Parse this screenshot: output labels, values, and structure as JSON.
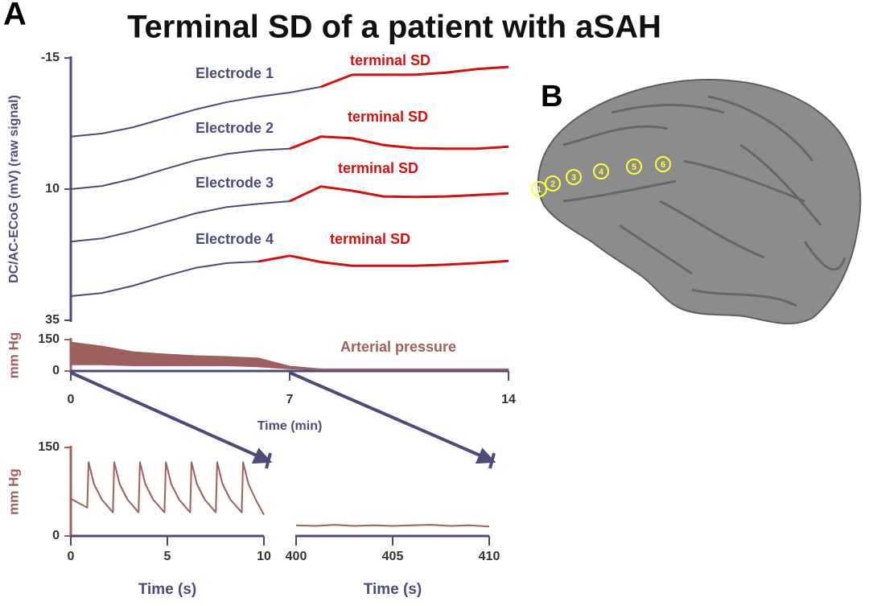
{
  "title": "Terminal SD of a patient with aSAH",
  "panel_labels": [
    "A",
    "B"
  ],
  "brain_electrodes": [
    "1",
    "2",
    "3",
    "4",
    "5",
    "6"
  ],
  "chart_data": [
    {
      "type": "line",
      "ylabel": "DC/AC-ECoG (mV) (raw signal)",
      "xlim": [
        0,
        14
      ],
      "ylim": [
        35,
        -15
      ],
      "yticks": [
        -15,
        10,
        35
      ],
      "x": [
        0,
        1,
        2,
        3,
        4,
        5,
        6,
        7,
        8,
        9,
        10,
        11,
        12,
        13,
        14
      ],
      "series": [
        {
          "name": "Electrode 1",
          "color": "#4b4b7c",
          "values": [
            0.0,
            -0.6,
            -1.8,
            -3.5,
            -5.2,
            -6.6,
            -7.6,
            -8.4,
            -9.5,
            null,
            null,
            null,
            null,
            null,
            null
          ]
        },
        {
          "name": "terminal SD",
          "color": "#d90f0f",
          "values": [
            null,
            null,
            null,
            null,
            null,
            null,
            null,
            null,
            -9.5,
            -11.8,
            -11.8,
            -11.8,
            -12.2,
            -12.9,
            -13.3
          ]
        },
        {
          "name": "Electrode 2",
          "color": "#4b4b7c",
          "values": [
            10.0,
            9.4,
            8.0,
            6.2,
            4.5,
            3.3,
            2.6,
            2.3,
            null,
            null,
            null,
            null,
            null,
            null,
            null
          ]
        },
        {
          "name": "terminal SD",
          "color": "#d90f0f",
          "values": [
            null,
            null,
            null,
            null,
            null,
            null,
            null,
            2.3,
            0.0,
            0.3,
            1.6,
            2.2,
            2.3,
            2.3,
            1.9
          ]
        },
        {
          "name": "Electrode 3",
          "color": "#4b4b7c",
          "values": [
            20.0,
            19.4,
            18.0,
            16.3,
            14.6,
            13.4,
            12.8,
            12.3,
            null,
            null,
            null,
            null,
            null,
            null,
            null
          ]
        },
        {
          "name": "terminal SD",
          "color": "#d90f0f",
          "values": [
            null,
            null,
            null,
            null,
            null,
            null,
            null,
            12.3,
            9.5,
            10.3,
            11.4,
            11.5,
            11.4,
            11.1,
            10.8
          ]
        },
        {
          "name": "Electrode 4",
          "color": "#4b4b7c",
          "values": [
            30.4,
            29.8,
            28.4,
            26.6,
            25.0,
            24.1,
            23.8,
            null,
            null,
            null,
            null,
            null,
            null,
            null,
            null
          ]
        },
        {
          "name": "terminal SD",
          "color": "#d90f0f",
          "values": [
            null,
            null,
            null,
            null,
            null,
            null,
            23.8,
            22.7,
            23.9,
            24.6,
            24.6,
            24.6,
            24.4,
            24.1,
            23.7
          ]
        }
      ]
    },
    {
      "type": "band",
      "ylabel": "mm Hg",
      "xlabel": "Time (min)",
      "xlim": [
        0,
        14
      ],
      "xticks": [
        0,
        7,
        14
      ],
      "ylim": [
        0,
        150
      ],
      "yticks": [
        0,
        150
      ],
      "x": [
        0,
        1,
        2,
        3,
        4,
        5,
        6,
        7,
        8,
        9,
        10,
        11,
        12,
        13,
        14
      ],
      "series": [
        {
          "name": "Arterial pressure",
          "color": "#9e5f5f",
          "high": [
            138,
            119,
            92,
            81,
            73,
            69,
            62,
            23,
            10,
            10,
            10,
            10,
            10,
            10,
            10
          ],
          "low": [
            30,
            30,
            25,
            25,
            25,
            25,
            20,
            10,
            5,
            5,
            5,
            5,
            5,
            5,
            5
          ]
        }
      ]
    },
    {
      "type": "line",
      "ylabel": "mm Hg",
      "xlabel": "Time (s)",
      "xlim": [
        0,
        10
      ],
      "xticks": [
        0,
        5,
        10
      ],
      "ylim": [
        0,
        150
      ],
      "yticks": [
        0,
        150
      ],
      "x": [
        0,
        0.85,
        0.92,
        1.2,
        1.6,
        2.18,
        2.25,
        2.53,
        2.93,
        3.51,
        3.58,
        3.86,
        4.26,
        4.85,
        4.92,
        5.2,
        5.6,
        6.18,
        6.25,
        6.53,
        6.93,
        7.51,
        7.58,
        7.86,
        8.26,
        8.85,
        8.92,
        9.2,
        9.6,
        10
      ],
      "series": [
        {
          "color": "#9e5f5f",
          "values": [
            63,
            48,
            125,
            88,
            62,
            40,
            125,
            88,
            62,
            40,
            125,
            88,
            62,
            40,
            125,
            88,
            62,
            40,
            125,
            88,
            62,
            40,
            125,
            88,
            62,
            40,
            125,
            88,
            60,
            36
          ]
        }
      ]
    },
    {
      "type": "line",
      "xlabel": "Time (s)",
      "xlim": [
        400,
        410
      ],
      "xticks": [
        400,
        405,
        410
      ],
      "ylim": [
        0,
        150
      ],
      "x": [
        400,
        401,
        402,
        403,
        404,
        405,
        406,
        407,
        408,
        409,
        410
      ],
      "series": [
        {
          "color": "#9e5f5f",
          "values": [
            18,
            17,
            19,
            17,
            18,
            17,
            18,
            19,
            17,
            18,
            16
          ]
        }
      ]
    }
  ]
}
